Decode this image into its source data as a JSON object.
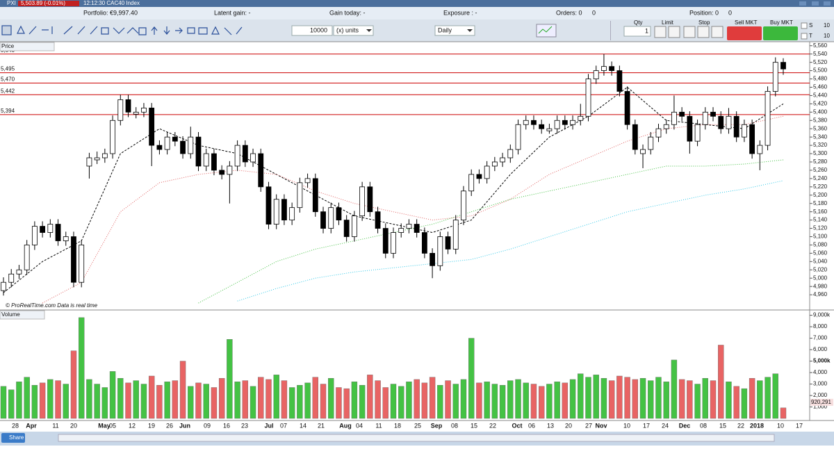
{
  "window": {
    "symbol": "PXI",
    "quote": "5,503.89 (-0.01%)",
    "time_name": "12:12:30 CAC40 Index"
  },
  "info": {
    "portfolio": "Portfolio: €9,997.40",
    "latent": "Latent gain: -",
    "gain_today": "Gain today: -",
    "exposure": "Exposure : -",
    "orders": "Orders: 0",
    "orders_2": "0",
    "position": "Position: 0",
    "position_2": "0"
  },
  "toolbar": {
    "quantity": "10000",
    "units": "(x) units",
    "period": "Daily",
    "qty": "Qty",
    "qty_value": "1",
    "limit": "Limit",
    "stop": "Stop",
    "sell": "Sell MKT",
    "buy": "Buy MKT",
    "s": "S",
    "s_value": "10",
    "t": "T",
    "t_value": "10"
  },
  "footer": {
    "share": "Share"
  },
  "chart_data": [
    {
      "type": "candlestick",
      "title": "Price",
      "note": "© ProRealTime.com  Data is real time",
      "up_color": "#ffffff",
      "down_color": "#000000",
      "ohlc": [
        [
          4970,
          5002,
          4958,
          4990
        ],
        [
          4990,
          5022,
          4978,
          5010
        ],
        [
          5010,
          5032,
          4998,
          5020
        ],
        [
          5020,
          5092,
          5008,
          5080
        ],
        [
          5080,
          5137,
          5068,
          5125
        ],
        [
          5125,
          5137,
          5098,
          5110
        ],
        [
          5110,
          5142,
          5098,
          5130
        ],
        [
          5130,
          5142,
          5078,
          5090
        ],
        [
          5090,
          5112,
          5078,
          5100
        ],
        [
          5100,
          5112,
          4978,
          4990
        ],
        [
          4990,
          5092,
          4978,
          5080
        ],
        [
          5270,
          5302,
          5240,
          5290
        ],
        [
          5285,
          5305,
          5275,
          5290
        ],
        [
          5290,
          5312,
          5278,
          5300
        ],
        [
          5300,
          5392,
          5288,
          5380
        ],
        [
          5380,
          5442,
          5368,
          5430
        ],
        [
          5430,
          5442,
          5388,
          5400
        ],
        [
          5395,
          5412,
          5385,
          5400
        ],
        [
          5400,
          5422,
          5388,
          5410
        ],
        [
          5410,
          5422,
          5270,
          5320
        ],
        [
          5320,
          5332,
          5298,
          5310
        ],
        [
          5310,
          5352,
          5298,
          5340
        ],
        [
          5340,
          5352,
          5318,
          5330
        ],
        [
          5330,
          5342,
          5288,
          5300
        ],
        [
          5300,
          5365,
          5288,
          5340
        ],
        [
          5340,
          5352,
          5258,
          5270
        ],
        [
          5270,
          5312,
          5258,
          5300
        ],
        [
          5300,
          5312,
          5248,
          5260
        ],
        [
          5260,
          5272,
          5238,
          5250
        ],
        [
          5250,
          5282,
          5180,
          5270
        ],
        [
          5270,
          5332,
          5258,
          5320
        ],
        [
          5320,
          5332,
          5268,
          5280
        ],
        [
          5280,
          5312,
          5268,
          5300
        ],
        [
          5300,
          5312,
          5208,
          5220
        ],
        [
          5220,
          5232,
          5118,
          5130
        ],
        [
          5130,
          5202,
          5118,
          5190
        ],
        [
          5190,
          5202,
          5128,
          5140
        ],
        [
          5140,
          5182,
          5128,
          5170
        ],
        [
          5170,
          5242,
          5158,
          5230
        ],
        [
          5230,
          5252,
          5218,
          5240
        ],
        [
          5240,
          5252,
          5148,
          5160
        ],
        [
          5160,
          5172,
          5108,
          5120
        ],
        [
          5120,
          5182,
          5108,
          5170
        ],
        [
          5170,
          5182,
          5128,
          5140
        ],
        [
          5140,
          5152,
          5088,
          5100
        ],
        [
          5100,
          5162,
          5088,
          5150
        ],
        [
          5150,
          5232,
          5138,
          5220
        ],
        [
          5220,
          5232,
          5148,
          5160
        ],
        [
          5160,
          5172,
          5108,
          5120
        ],
        [
          5120,
          5132,
          5048,
          5060
        ],
        [
          5060,
          5122,
          5048,
          5110
        ],
        [
          5110,
          5132,
          5098,
          5120
        ],
        [
          5120,
          5142,
          5108,
          5130
        ],
        [
          5130,
          5142,
          5098,
          5110
        ],
        [
          5110,
          5122,
          5048,
          5060
        ],
        [
          5060,
          5072,
          5000,
          5030
        ],
        [
          5030,
          5112,
          5018,
          5100
        ],
        [
          5100,
          5112,
          5058,
          5070
        ],
        [
          5070,
          5152,
          5058,
          5140
        ],
        [
          5140,
          5222,
          5128,
          5210
        ],
        [
          5210,
          5262,
          5198,
          5250
        ],
        [
          5250,
          5262,
          5228,
          5240
        ],
        [
          5240,
          5282,
          5228,
          5270
        ],
        [
          5270,
          5292,
          5258,
          5280
        ],
        [
          5280,
          5302,
          5268,
          5290
        ],
        [
          5290,
          5322,
          5278,
          5310
        ],
        [
          5310,
          5382,
          5298,
          5370
        ],
        [
          5370,
          5392,
          5358,
          5380
        ],
        [
          5380,
          5392,
          5358,
          5370
        ],
        [
          5370,
          5382,
          5348,
          5360
        ],
        [
          5355,
          5372,
          5348,
          5360
        ],
        [
          5360,
          5392,
          5348,
          5380
        ],
        [
          5380,
          5392,
          5358,
          5370
        ],
        [
          5370,
          5392,
          5358,
          5380
        ],
        [
          5380,
          5420,
          5368,
          5390
        ],
        [
          5390,
          5492,
          5378,
          5480
        ],
        [
          5480,
          5512,
          5468,
          5500
        ],
        [
          5500,
          5540,
          5488,
          5510
        ],
        [
          5510,
          5522,
          5488,
          5500
        ],
        [
          5500,
          5512,
          5438,
          5450
        ],
        [
          5450,
          5462,
          5358,
          5370
        ],
        [
          5370,
          5382,
          5298,
          5310
        ],
        [
          5300,
          5322,
          5265,
          5310
        ],
        [
          5310,
          5352,
          5298,
          5340
        ],
        [
          5340,
          5372,
          5328,
          5360
        ],
        [
          5360,
          5382,
          5348,
          5370
        ],
        [
          5370,
          5440,
          5358,
          5400
        ],
        [
          5400,
          5412,
          5378,
          5390
        ],
        [
          5390,
          5402,
          5300,
          5330
        ],
        [
          5330,
          5382,
          5318,
          5370
        ],
        [
          5370,
          5412,
          5358,
          5400
        ],
        [
          5400,
          5412,
          5378,
          5390
        ],
        [
          5390,
          5402,
          5348,
          5360
        ],
        [
          5360,
          5410,
          5348,
          5390
        ],
        [
          5390,
          5402,
          5328,
          5340
        ],
        [
          5340,
          5382,
          5328,
          5370
        ],
        [
          5370,
          5382,
          5288,
          5300
        ],
        [
          5300,
          5332,
          5260,
          5320
        ],
        [
          5320,
          5462,
          5308,
          5450
        ],
        [
          5450,
          5532,
          5438,
          5520
        ],
        [
          5520,
          5530,
          5490,
          5504
        ]
      ],
      "moving_averages": {
        "index": [
          0,
          5,
          10,
          15,
          20,
          25,
          30,
          35,
          40,
          45,
          50,
          55,
          60,
          65,
          70,
          75,
          80,
          85,
          90,
          95,
          100
        ],
        "series": [
          {
            "color": "#000000",
            "style": "dashed",
            "values": [
              4965,
              5040,
              5090,
              5300,
              5360,
              5320,
              5300,
              5250,
              5200,
              5150,
              5130,
              5110,
              5140,
              5250,
              5340,
              5390,
              5460,
              5380,
              5370,
              5360,
              5420
            ]
          },
          {
            "color": "#e06060",
            "style": "dotted",
            "values": [
              null,
              4940,
              4990,
              5160,
              5230,
              5250,
              5260,
              5250,
              5210,
              5180,
              5160,
              5140,
              5150,
              5190,
              5250,
              5290,
              5330,
              5360,
              5370,
              5370,
              5390
            ]
          },
          {
            "color": "#40c040",
            "style": "dotted",
            "values": [
              null,
              null,
              null,
              null,
              null,
              4940,
              4990,
              5040,
              5070,
              5090,
              5110,
              5130,
              5160,
              5190,
              5210,
              5230,
              5250,
              5270,
              5270,
              5275,
              5285
            ]
          },
          {
            "color": "#30c8e8",
            "style": "dotted",
            "values": [
              null,
              null,
              null,
              null,
              null,
              null,
              4945,
              4975,
              5000,
              5015,
              5025,
              5035,
              5045,
              5070,
              5100,
              5130,
              5160,
              5180,
              5200,
              5215,
              5235
            ]
          }
        ]
      },
      "levels": [
        {
          "value": 5540,
          "label": "5,540"
        },
        {
          "value": 5495,
          "label": "5,495"
        },
        {
          "value": 5470,
          "label": "5,470"
        },
        {
          "value": 5442,
          "label": "5,442"
        },
        {
          "value": 5394,
          "label": "5,394"
        }
      ],
      "level_color": "#cc0000",
      "ylim": [
        4925,
        5568
      ],
      "yticks": [
        {
          "value": 4960,
          "label": "4,960"
        },
        {
          "value": 4980,
          "label": "4,980"
        },
        {
          "value": 5000,
          "label": "5,000"
        },
        {
          "value": 5020,
          "label": "5,020"
        },
        {
          "value": 5040,
          "label": "5,040"
        },
        {
          "value": 5060,
          "label": "5,060"
        },
        {
          "value": 5080,
          "label": "5,080"
        },
        {
          "value": 5100,
          "label": "5,100"
        },
        {
          "value": 5120,
          "label": "5,120"
        },
        {
          "value": 5140,
          "label": "5,140"
        },
        {
          "value": 5160,
          "label": "5,160"
        },
        {
          "value": 5180,
          "label": "5,180"
        },
        {
          "value": 5200,
          "label": "5,200"
        },
        {
          "value": 5220,
          "label": "5,220"
        },
        {
          "value": 5240,
          "label": "5,240"
        },
        {
          "value": 5260,
          "label": "5,260"
        },
        {
          "value": 5280,
          "label": "5,280"
        },
        {
          "value": 5300,
          "label": "5,300"
        },
        {
          "value": 5320,
          "label": "5,320"
        },
        {
          "value": 5340,
          "label": "5,340"
        },
        {
          "value": 5360,
          "label": "5,360"
        },
        {
          "value": 5380,
          "label": "5,380"
        },
        {
          "value": 5400,
          "label": "5,400"
        },
        {
          "value": 5420,
          "label": "5,420"
        },
        {
          "value": 5440,
          "label": "5,440"
        },
        {
          "value": 5460,
          "label": "5,460"
        },
        {
          "value": 5480,
          "label": "5,480"
        },
        {
          "value": 5500,
          "label": "5,500"
        },
        {
          "value": 5520,
          "label": "5,520"
        },
        {
          "value": 5540,
          "label": "5,540"
        },
        {
          "value": 5560,
          "label": "5,560"
        }
      ],
      "date_labels": [
        "28",
        "Apr",
        "11",
        "20",
        "May",
        "05",
        "12",
        "19",
        "26",
        "Jun",
        "09",
        "16",
        "23",
        "Jul",
        "07",
        "14",
        "21",
        "Aug",
        "04",
        "11",
        "18",
        "25",
        "Sep",
        "08",
        "15",
        "22",
        "Oct",
        "06",
        "13",
        "20",
        "27",
        "Nov",
        "10",
        "17",
        "24",
        "Dec",
        "08",
        "15",
        "22",
        "2018",
        "10",
        "17"
      ]
    },
    {
      "type": "bar",
      "title": "Volume",
      "up_color": "#44c244",
      "down_color": "#e86464",
      "values": [
        2800,
        2500,
        3200,
        3600,
        2900,
        3100,
        3400,
        3300,
        3000,
        5900,
        8800,
        3400,
        3000,
        2700,
        4100,
        3500,
        3100,
        3300,
        3000,
        3700,
        2900,
        3200,
        3300,
        5000,
        2800,
        3100,
        3000,
        2700,
        3500,
        6900,
        3200,
        3300,
        2800,
        3600,
        3400,
        3800,
        3300,
        2700,
        2900,
        3100,
        3600,
        3000,
        3500,
        2700,
        2600,
        3200,
        2900,
        3800,
        3300,
        2700,
        3000,
        2800,
        3200,
        3400,
        3100,
        3600,
        2900,
        3300,
        3000,
        3400,
        7000,
        3100,
        3200,
        3000,
        2900,
        3300,
        3400,
        3100,
        3000,
        2800,
        3000,
        3200,
        3100,
        3400,
        3900,
        3600,
        3800,
        3500,
        3300,
        3700,
        3600,
        3400,
        3500,
        3300,
        3600,
        3200,
        5100,
        3400,
        3300,
        3000,
        3500,
        3300,
        6400,
        3200,
        2800,
        2600,
        3500,
        3300,
        3600,
        3900,
        920.291
      ],
      "value_labels": [
        null,
        null,
        null,
        null,
        null,
        null,
        null,
        null,
        null,
        null,
        null,
        null,
        null,
        null,
        null,
        null,
        null,
        null,
        null,
        null,
        null,
        null,
        null,
        null,
        null,
        null,
        null,
        null,
        null,
        null,
        null,
        null,
        null,
        null,
        null,
        null,
        null,
        null,
        null,
        null,
        null,
        null,
        null,
        null,
        null,
        null,
        null,
        null,
        null,
        null,
        null,
        null,
        null,
        null,
        null,
        null,
        null,
        null,
        null,
        null,
        null,
        null,
        null,
        null,
        null,
        null,
        null,
        null,
        null,
        null,
        null,
        null,
        null,
        null,
        null,
        null,
        null,
        null,
        null,
        null,
        null,
        null,
        null,
        null,
        null,
        null,
        null,
        null,
        null,
        null,
        null,
        null,
        null,
        null,
        null,
        null,
        null,
        null,
        null,
        null,
        "920,291"
      ],
      "ylim": [
        0,
        9400
      ],
      "yticks": [
        {
          "value": 1000,
          "label": "1,000"
        },
        {
          "value": 2000,
          "label": "2,000"
        },
        {
          "value": 3000,
          "label": "3,000"
        },
        {
          "value": 4000,
          "label": "4,000"
        },
        {
          "value": 5000,
          "label": "5,000k"
        },
        {
          "value": 6000,
          "label": "6,000"
        },
        {
          "value": 7000,
          "label": "7,000"
        },
        {
          "value": 8000,
          "label": "8,000"
        },
        {
          "value": 9000,
          "label": "9,000k"
        }
      ]
    }
  ]
}
